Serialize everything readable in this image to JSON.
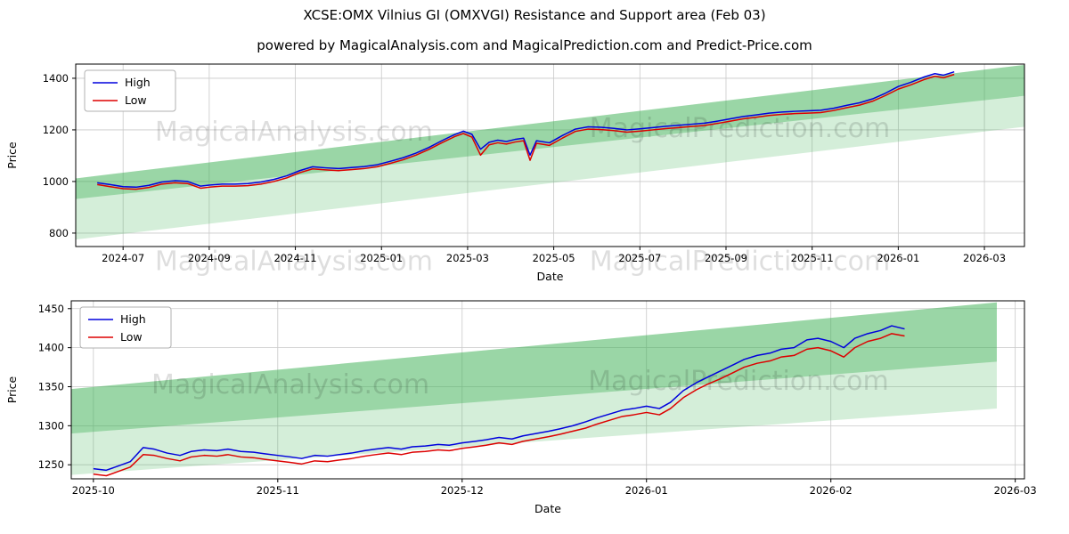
{
  "page": {
    "title": "XCSE:OMX Vilnius GI (OMXVGI) Resistance and Support area (Feb 03)",
    "subtitle": "powered by MagicalAnalysis.com and MagicalPrediction.com and Predict-Price.com"
  },
  "colors": {
    "high": "#0000dd",
    "low": "#dd0000",
    "band": "#3cb054",
    "grid": "#c9c9c9",
    "spine": "#000000",
    "watermark": "rgba(0,0,0,0.13)"
  },
  "chart_data": [
    {
      "type": "line",
      "title": "",
      "xlabel": "Date",
      "ylabel": "Price",
      "legend": [
        "High",
        "Low"
      ],
      "legend_position": "upper left",
      "grid": true,
      "xlim": [
        -0.1,
        21.93
      ],
      "ylim": [
        748,
        1455
      ],
      "x_ticks": [
        1,
        3,
        5,
        7,
        9,
        11,
        13,
        15,
        17,
        19,
        21
      ],
      "x_tick_labels": [
        "2024-07",
        "2024-09",
        "2024-11",
        "2025-01",
        "2025-03",
        "2025-05",
        "2025-07",
        "2025-09",
        "2025-11",
        "2026-01",
        "2026-03"
      ],
      "y_ticks": [
        800,
        1000,
        1200,
        1400
      ],
      "x": [
        0.4,
        0.7,
        1.0,
        1.3,
        1.6,
        1.9,
        2.2,
        2.5,
        2.8,
        3.0,
        3.3,
        3.6,
        3.9,
        4.2,
        4.5,
        4.8,
        5.1,
        5.4,
        5.7,
        6.0,
        6.3,
        6.6,
        6.9,
        7.2,
        7.5,
        7.8,
        8.1,
        8.4,
        8.7,
        8.9,
        9.1,
        9.3,
        9.5,
        9.7,
        9.9,
        10.1,
        10.3,
        10.45,
        10.6,
        10.9,
        11.2,
        11.5,
        11.8,
        12.1,
        12.4,
        12.7,
        13.0,
        13.3,
        13.6,
        13.9,
        14.2,
        14.5,
        14.8,
        15.1,
        15.4,
        15.7,
        16.0,
        16.3,
        16.6,
        16.9,
        17.2,
        17.5,
        17.8,
        18.1,
        18.4,
        18.7,
        19.0,
        19.3,
        19.6,
        19.85,
        20.05,
        20.3
      ],
      "series": [
        {
          "name": "High",
          "values": [
            995,
            988,
            980,
            978,
            985,
            998,
            1003,
            1000,
            982,
            986,
            990,
            990,
            992,
            998,
            1008,
            1022,
            1042,
            1057,
            1053,
            1050,
            1054,
            1058,
            1065,
            1078,
            1092,
            1110,
            1132,
            1158,
            1182,
            1195,
            1183,
            1125,
            1152,
            1160,
            1155,
            1163,
            1168,
            1102,
            1158,
            1150,
            1178,
            1203,
            1212,
            1210,
            1206,
            1200,
            1204,
            1209,
            1214,
            1218,
            1222,
            1226,
            1234,
            1243,
            1252,
            1258,
            1265,
            1269,
            1272,
            1274,
            1276,
            1284,
            1295,
            1305,
            1320,
            1342,
            1368,
            1385,
            1405,
            1418,
            1412,
            1425
          ]
        },
        {
          "name": "Low",
          "values": [
            988,
            980,
            972,
            970,
            977,
            990,
            995,
            992,
            974,
            978,
            982,
            982,
            984,
            990,
            1000,
            1014,
            1034,
            1049,
            1045,
            1042,
            1046,
            1050,
            1057,
            1070,
            1084,
            1102,
            1124,
            1150,
            1174,
            1186,
            1172,
            1102,
            1142,
            1150,
            1145,
            1153,
            1158,
            1082,
            1148,
            1140,
            1168,
            1194,
            1203,
            1201,
            1197,
            1191,
            1195,
            1200,
            1205,
            1209,
            1213,
            1217,
            1225,
            1234,
            1243,
            1249,
            1256,
            1260,
            1263,
            1265,
            1267,
            1275,
            1286,
            1296,
            1311,
            1333,
            1358,
            1375,
            1395,
            1408,
            1402,
            1415
          ]
        }
      ],
      "bands": [
        {
          "alpha": 0.22,
          "points": [
            [
              -0.1,
              775
            ],
            [
              -0.1,
              1012
            ],
            [
              21.93,
              1452
            ],
            [
              21.93,
              1212
            ]
          ]
        },
        {
          "alpha": 0.38,
          "points": [
            [
              -0.1,
              932
            ],
            [
              -0.1,
              1012
            ],
            [
              21.93,
              1452
            ],
            [
              21.93,
              1332
            ]
          ]
        }
      ],
      "watermarks": [
        {
          "text": "MagicalAnalysis.com",
          "xf": 0.23,
          "yf": 0.42
        },
        {
          "text": "MagicalPrediction.com",
          "xf": 0.7,
          "yf": 0.4
        },
        {
          "text": "MagicalAnalysis.com",
          "xf": 0.23,
          "yf": 1.13
        },
        {
          "text": "MagicalPrediction.com",
          "xf": 0.7,
          "yf": 1.13
        }
      ]
    },
    {
      "type": "line",
      "title": "",
      "xlabel": "Date",
      "ylabel": "Price",
      "legend": [
        "High",
        "Low"
      ],
      "legend_position": "upper left",
      "grid": true,
      "xlim": [
        -0.12,
        5.05
      ],
      "ylim": [
        1232,
        1460
      ],
      "x_ticks": [
        0,
        1,
        2,
        3,
        4,
        5
      ],
      "x_tick_labels": [
        "2025-10",
        "2025-11",
        "2025-12",
        "2026-01",
        "2026-02",
        "2026-03"
      ],
      "y_ticks": [
        1250,
        1300,
        1350,
        1400,
        1450
      ],
      "x": [
        0,
        0.07,
        0.13,
        0.2,
        0.27,
        0.33,
        0.4,
        0.47,
        0.53,
        0.6,
        0.67,
        0.73,
        0.8,
        0.87,
        0.93,
        1.0,
        1.07,
        1.13,
        1.2,
        1.27,
        1.33,
        1.4,
        1.47,
        1.53,
        1.6,
        1.67,
        1.73,
        1.8,
        1.87,
        1.93,
        2.0,
        2.07,
        2.13,
        2.2,
        2.27,
        2.33,
        2.4,
        2.47,
        2.53,
        2.6,
        2.67,
        2.73,
        2.8,
        2.87,
        2.93,
        3.0,
        3.07,
        3.13,
        3.2,
        3.27,
        3.33,
        3.4,
        3.47,
        3.53,
        3.6,
        3.67,
        3.73,
        3.8,
        3.87,
        3.93,
        4.0,
        4.07,
        4.13,
        4.2,
        4.27,
        4.33,
        4.4
      ],
      "series": [
        {
          "name": "High",
          "values": [
            1245,
            1243,
            1248,
            1254,
            1272,
            1270,
            1265,
            1262,
            1267,
            1269,
            1268,
            1270,
            1267,
            1266,
            1264,
            1262,
            1260,
            1258,
            1262,
            1261,
            1263,
            1265,
            1268,
            1270,
            1272,
            1270,
            1273,
            1274,
            1276,
            1275,
            1278,
            1280,
            1282,
            1285,
            1283,
            1287,
            1290,
            1293,
            1296,
            1300,
            1305,
            1310,
            1315,
            1320,
            1322,
            1325,
            1322,
            1330,
            1345,
            1355,
            1362,
            1370,
            1378,
            1385,
            1390,
            1393,
            1398,
            1400,
            1410,
            1412,
            1408,
            1400,
            1412,
            1418,
            1422,
            1428,
            1424
          ]
        },
        {
          "name": "Low",
          "values": [
            1238,
            1236,
            1241,
            1247,
            1263,
            1262,
            1258,
            1255,
            1260,
            1262,
            1261,
            1263,
            1260,
            1259,
            1257,
            1255,
            1253,
            1251,
            1255,
            1254,
            1256,
            1258,
            1261,
            1263,
            1265,
            1263,
            1266,
            1267,
            1269,
            1268,
            1271,
            1273,
            1275,
            1278,
            1276,
            1280,
            1283,
            1286,
            1289,
            1293,
            1297,
            1302,
            1307,
            1312,
            1314,
            1317,
            1314,
            1322,
            1336,
            1346,
            1353,
            1360,
            1368,
            1375,
            1380,
            1383,
            1388,
            1390,
            1398,
            1400,
            1396,
            1388,
            1400,
            1408,
            1412,
            1418,
            1415
          ]
        }
      ],
      "bands": [
        {
          "alpha": 0.22,
          "points": [
            [
              -0.12,
              1237
            ],
            [
              -0.12,
              1347
            ],
            [
              4.9,
              1458
            ],
            [
              4.9,
              1322
            ]
          ]
        },
        {
          "alpha": 0.38,
          "points": [
            [
              -0.12,
              1290
            ],
            [
              -0.12,
              1347
            ],
            [
              4.9,
              1458
            ],
            [
              4.9,
              1382
            ]
          ]
        }
      ],
      "watermarks": [
        {
          "text": "MagicalAnalysis.com",
          "xf": 0.23,
          "yf": 0.52
        },
        {
          "text": "MagicalPrediction.com",
          "xf": 0.7,
          "yf": 0.5
        }
      ]
    }
  ]
}
